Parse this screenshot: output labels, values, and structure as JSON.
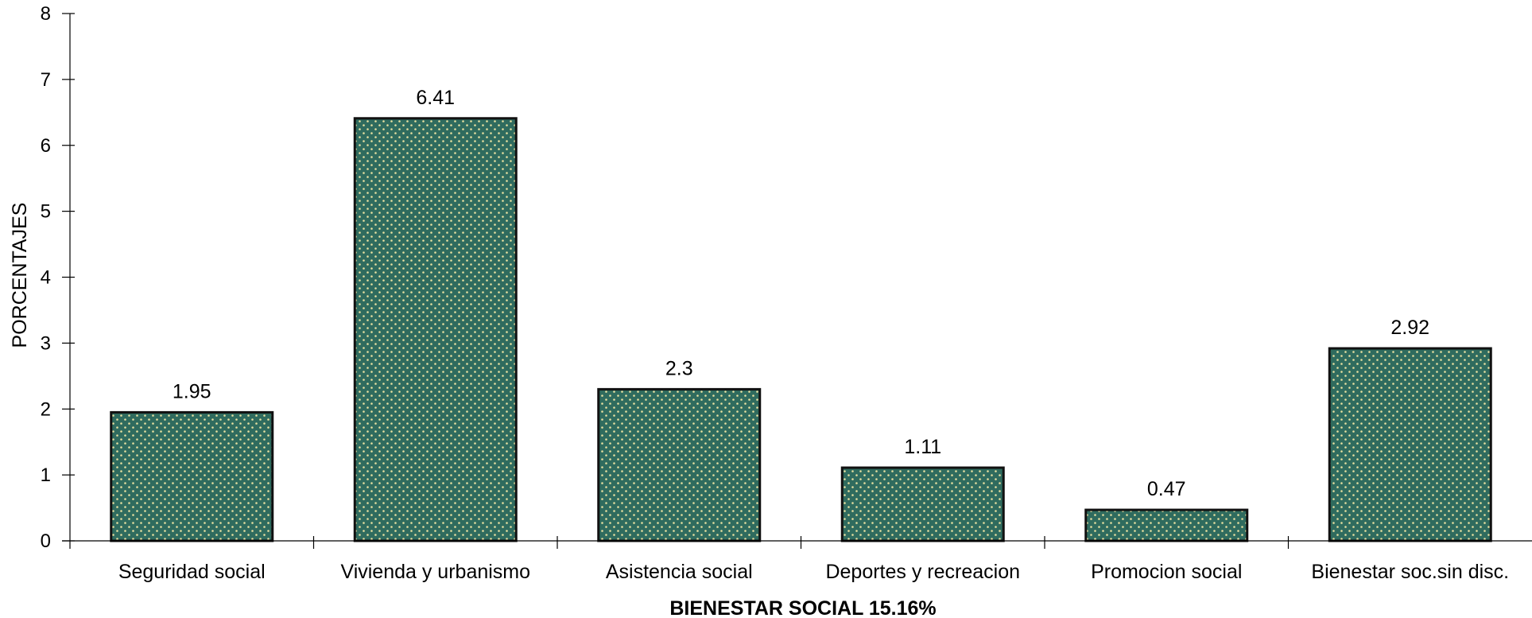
{
  "chart_data": {
    "type": "bar",
    "categories": [
      "Seguridad social",
      "Vivienda y urbanismo",
      "Asistencia social",
      "Deportes y recreacion",
      "Promocion social",
      "Bienestar soc.sin disc."
    ],
    "values": [
      1.95,
      6.41,
      2.3,
      1.11,
      0.47,
      2.92
    ],
    "data_labels": [
      "1.95",
      "6.41",
      "2.3",
      "1.11",
      "0.47",
      "2.92"
    ],
    "title": "",
    "xlabel": "BIENESTAR SOCIAL 15.16%",
    "ylabel": "PORCENTAJES",
    "ylim": [
      0,
      8
    ],
    "yticks": [
      "0",
      "1",
      "2",
      "3",
      "4",
      "5",
      "6",
      "7",
      "8"
    ],
    "grid": false,
    "legend": "none",
    "bar_color": "#2f6b5e",
    "dot_color": "#e8e0a0"
  }
}
